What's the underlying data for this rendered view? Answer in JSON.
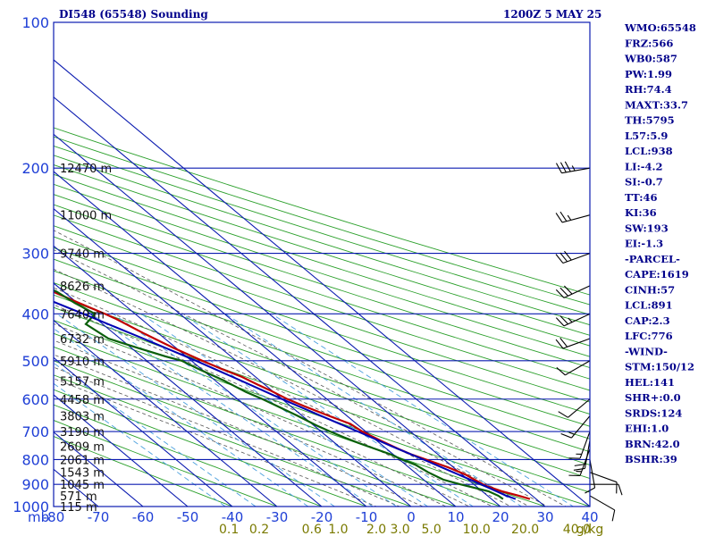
{
  "header": {
    "station": "DI548 (65548) Sounding",
    "time": "1200Z  5 MAY 25"
  },
  "colors": {
    "isobar": "#0b1bb0",
    "isotherm": "#0b1bb0",
    "dry_adiabat": "#2ca02c",
    "moist_adiabat": "#555555",
    "mixing_ratio": "#4a9fdd",
    "temperature": "#c00000",
    "dewpoint": "#0a5f0a",
    "parcel": "#0000b4",
    "barb": "#000000",
    "text": "#00008b"
  },
  "chart_data": {
    "type": "line",
    "subtype": "skew-t log-p",
    "title": "DI548 (65548) Sounding",
    "pressure_levels": [
      100,
      200,
      300,
      400,
      500,
      600,
      700,
      800,
      900,
      1000
    ],
    "pressure_unit_label": "mb",
    "temperature_ticks": [
      -80,
      -70,
      -60,
      -50,
      -40,
      -30,
      -20,
      -10,
      0,
      10,
      20,
      30,
      40
    ],
    "temperature_ticks_text": [
      "-80",
      "-70",
      "-60",
      "-50",
      "-40",
      "-30",
      "-20",
      "-10",
      "0",
      "10",
      "20",
      "30",
      "40"
    ],
    "mixing_ratio_labels": [
      "0.1",
      "0.2",
      "0.6",
      "1.0",
      "2.0",
      "3.0",
      "5.0",
      "10.0",
      "20.0",
      "40.0"
    ],
    "mixing_ratio_unit": "g/kg",
    "xlim": [
      -80,
      40
    ],
    "ylim": [
      1000,
      100
    ],
    "height_labels": [
      {
        "p": 200,
        "text": "12470 m"
      },
      {
        "p": 250,
        "text": "11000 m"
      },
      {
        "p": 300,
        "text": "9740 m"
      },
      {
        "p": 350,
        "text": "8626 m"
      },
      {
        "p": 400,
        "text": "7640 m"
      },
      {
        "p": 450,
        "text": "6732 m"
      },
      {
        "p": 500,
        "text": "5910 m"
      },
      {
        "p": 550,
        "text": "5157 m"
      },
      {
        "p": 600,
        "text": "4458 m"
      },
      {
        "p": 650,
        "text": "3803 m"
      },
      {
        "p": 700,
        "text": "3190 m"
      },
      {
        "p": 750,
        "text": "2609 m"
      },
      {
        "p": 800,
        "text": "2061 m"
      },
      {
        "p": 850,
        "text": "1543 m"
      },
      {
        "p": 900,
        "text": "1045 m"
      },
      {
        "p": 950,
        "text": "571 m"
      },
      {
        "p": 1000,
        "text": "115 m"
      }
    ],
    "series": [
      {
        "name": "Temperature",
        "points": [
          [
            965,
            28.6
          ],
          [
            950,
            27.0
          ],
          [
            930,
            24.4
          ],
          [
            905,
            22.2
          ],
          [
            880,
            21.4
          ],
          [
            860,
            20.8
          ],
          [
            830,
            18.8
          ],
          [
            800,
            16.0
          ],
          [
            780,
            14.0
          ],
          [
            760,
            12.6
          ],
          [
            730,
            10.8
          ],
          [
            700,
            9.2
          ],
          [
            675,
            8.6
          ],
          [
            650,
            6.0
          ],
          [
            620,
            3.0
          ],
          [
            600,
            1.2
          ],
          [
            575,
            -0.4
          ],
          [
            560,
            -1.6
          ],
          [
            540,
            -3.0
          ],
          [
            520,
            -5.4
          ],
          [
            500,
            -7.6
          ],
          [
            470,
            -10.6
          ],
          [
            440,
            -13.2
          ],
          [
            410,
            -15.6
          ],
          [
            400,
            -16.8
          ],
          [
            380,
            -19.6
          ],
          [
            360,
            -22.4
          ],
          [
            340,
            -25.0
          ],
          [
            320,
            -28.2
          ],
          [
            300,
            -31.6
          ],
          [
            280,
            -35.0
          ],
          [
            265,
            -38.0
          ],
          [
            250,
            -41.4
          ],
          [
            230,
            -45.4
          ],
          [
            210,
            -50.0
          ],
          [
            198,
            -54.0
          ]
        ]
      },
      {
        "name": "Dewpoint",
        "points": [
          [
            965,
            22.6
          ],
          [
            950,
            22.4
          ],
          [
            930,
            21.4
          ],
          [
            900,
            17.0
          ],
          [
            880,
            14.4
          ],
          [
            850,
            13.0
          ],
          [
            820,
            12.2
          ],
          [
            800,
            10.6
          ],
          [
            780,
            9.4
          ],
          [
            760,
            7.4
          ],
          [
            740,
            5.4
          ],
          [
            720,
            3.6
          ],
          [
            700,
            2.0
          ],
          [
            680,
            0.6
          ],
          [
            650,
            -1.0
          ],
          [
            620,
            -3.0
          ],
          [
            600,
            -4.4
          ],
          [
            580,
            -6.2
          ],
          [
            550,
            -8.0
          ],
          [
            520,
            -10.6
          ],
          [
            500,
            -12.2
          ],
          [
            490,
            -14.6
          ],
          [
            470,
            -18.6
          ],
          [
            450,
            -22.6
          ],
          [
            420,
            -23.8
          ],
          [
            400,
            -19.0
          ],
          [
            380,
            -20.6
          ],
          [
            360,
            -21.6
          ],
          [
            350,
            -23.0
          ],
          [
            335,
            -24.0
          ],
          [
            320,
            -26.6
          ],
          [
            305,
            -28.6
          ],
          [
            300,
            -30.6
          ],
          [
            290,
            -31.8
          ],
          [
            280,
            -33.6
          ],
          [
            270,
            -35.4
          ],
          [
            260,
            -36.8
          ],
          [
            250,
            -39.0
          ],
          [
            235,
            -42.2
          ],
          [
            220,
            -46.6
          ],
          [
            205,
            -51.0
          ],
          [
            198,
            -55.0
          ]
        ]
      },
      {
        "name": "Parcel",
        "points": [
          [
            965,
            25.4
          ],
          [
            950,
            24.2
          ],
          [
            900,
            21.6
          ],
          [
            850,
            18.6
          ],
          [
            800,
            15.4
          ],
          [
            750,
            11.8
          ],
          [
            700,
            8.2
          ],
          [
            650,
            4.2
          ],
          [
            600,
            0.0
          ],
          [
            550,
            -4.2
          ],
          [
            500,
            -9.0
          ],
          [
            450,
            -14.8
          ],
          [
            400,
            -21.6
          ],
          [
            350,
            -29.6
          ],
          [
            300,
            -38.6
          ],
          [
            250,
            -49.2
          ],
          [
            200,
            -61.6
          ],
          [
            160,
            -73.6
          ],
          [
            130,
            -84.4
          ],
          [
            115,
            -91.0
          ]
        ]
      }
    ],
    "wind_barbs": [
      {
        "p": 200,
        "dir": 260,
        "spd": 35
      },
      {
        "p": 250,
        "dir": 255,
        "spd": 25
      },
      {
        "p": 300,
        "dir": 250,
        "spd": 30
      },
      {
        "p": 350,
        "dir": 245,
        "spd": 30
      },
      {
        "p": 400,
        "dir": 245,
        "spd": 25
      },
      {
        "p": 450,
        "dir": 250,
        "spd": 20
      },
      {
        "p": 500,
        "dir": 240,
        "spd": 10
      },
      {
        "p": 600,
        "dir": 230,
        "spd": 10
      },
      {
        "p": 650,
        "dir": 220,
        "spd": 15
      },
      {
        "p": 700,
        "dir": 200,
        "spd": 15
      },
      {
        "p": 730,
        "dir": 190,
        "spd": 20
      },
      {
        "p": 760,
        "dir": 200,
        "spd": 15
      },
      {
        "p": 800,
        "dir": 170,
        "spd": 10
      },
      {
        "p": 850,
        "dir": 110,
        "spd": 10
      },
      {
        "p": 900,
        "dir": 90,
        "spd": 10
      },
      {
        "p": 950,
        "dir": 120,
        "spd": 10
      }
    ]
  },
  "indices": [
    "WMO:65548",
    "FRZ:566",
    "WB0:587",
    "PW:1.99",
    "RH:74.4",
    "MAXT:33.7",
    "TH:5795",
    "L57:5.9",
    "LCL:938",
    "LI:-4.2",
    "SI:-0.7",
    "TT:46",
    "KI:36",
    "SW:193",
    "EI:-1.3",
    "-PARCEL-",
    "CAPE:1619",
    "CINH:57",
    "LCL:891",
    "CAP:2.3",
    "LFC:776",
    "-WIND-",
    "STM:150/12",
    "HEL:141",
    "SHR+:0.0",
    "SRDS:124",
    "EHI:1.0",
    "BRN:42.0",
    "BSHR:39"
  ]
}
